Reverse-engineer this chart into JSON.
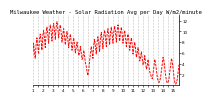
{
  "title": "Milwaukee Weather - Solar Radiation Avg per Day W/m2/minute",
  "line_color": "#ff0000",
  "background_color": "#ffffff",
  "grid_color": "#808080",
  "y_values": [
    5.5,
    7.8,
    6.2,
    5.0,
    7.5,
    8.8,
    7.2,
    5.8,
    8.5,
    9.5,
    8.2,
    6.5,
    9.2,
    10.2,
    8.8,
    7.0,
    9.8,
    10.8,
    9.5,
    7.8,
    10.2,
    11.2,
    10.0,
    8.2,
    10.5,
    11.5,
    10.2,
    8.5,
    10.8,
    11.8,
    10.5,
    8.8,
    10.5,
    11.2,
    9.8,
    8.0,
    9.5,
    10.5,
    9.0,
    7.5,
    9.0,
    10.0,
    8.5,
    7.0,
    8.5,
    9.5,
    8.0,
    6.5,
    7.8,
    8.8,
    7.5,
    6.0,
    7.0,
    8.0,
    6.8,
    5.5,
    6.0,
    7.2,
    6.0,
    4.8,
    5.2,
    6.5,
    5.5,
    4.2,
    3.5,
    2.5,
    1.8,
    2.8,
    4.5,
    5.8,
    7.2,
    6.2,
    5.0,
    7.5,
    8.5,
    7.2,
    5.8,
    8.0,
    9.0,
    7.8,
    6.2,
    8.8,
    9.8,
    8.5,
    6.8,
    9.2,
    10.2,
    9.0,
    7.2,
    9.5,
    10.5,
    9.2,
    7.5,
    9.8,
    10.8,
    9.5,
    7.8,
    10.0,
    11.0,
    9.8,
    8.0,
    10.2,
    11.2,
    10.0,
    8.2,
    9.8,
    10.8,
    9.5,
    7.8,
    9.2,
    10.2,
    8.8,
    7.2,
    8.5,
    9.5,
    8.2,
    6.5,
    7.8,
    8.8,
    7.5,
    5.8,
    7.0,
    8.0,
    6.8,
    5.2,
    6.0,
    7.0,
    5.8,
    4.5,
    5.2,
    6.2,
    5.0,
    3.8,
    4.2,
    5.5,
    4.2,
    3.0,
    3.5,
    4.8,
    3.5,
    2.5,
    2.0,
    1.5,
    1.2,
    2.2,
    3.5,
    4.8,
    4.0,
    2.8,
    1.5,
    0.8,
    0.5,
    0.8,
    1.5,
    2.8,
    4.0,
    5.2,
    4.5,
    3.2,
    1.8,
    0.8,
    0.4,
    0.6,
    1.2,
    2.5,
    3.8,
    5.0,
    4.2,
    3.0,
    1.5,
    0.5,
    0.2,
    0.5,
    1.2,
    2.5,
    3.8
  ],
  "ylim": [
    0,
    13
  ],
  "yticks": [
    2,
    4,
    6,
    8,
    10,
    12
  ],
  "x_tick_positions": [
    0,
    6,
    12,
    18,
    24,
    30,
    36,
    42,
    48,
    54,
    60,
    66,
    72,
    78,
    84,
    90,
    96,
    102,
    108,
    114,
    120,
    126,
    132,
    138,
    144,
    150,
    156,
    162,
    168
  ],
  "x_tick_labels": [
    "1",
    "",
    "2",
    "",
    "3",
    "",
    "4",
    "",
    "5",
    "",
    "6",
    "",
    "7",
    "",
    "8",
    "",
    "9",
    "",
    "10",
    "",
    "11",
    "",
    "12",
    "",
    "13",
    "",
    "14",
    "",
    "15"
  ],
  "title_fontsize": 4.0,
  "tick_fontsize": 3.0
}
